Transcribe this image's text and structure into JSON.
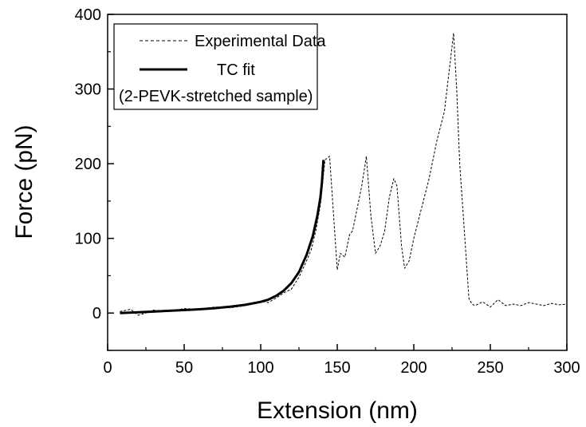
{
  "chart_data": {
    "type": "line",
    "title": "",
    "xlabel": "Extension (nm)",
    "ylabel": "Force (pN)",
    "xlim": [
      0,
      300
    ],
    "ylim": [
      -50,
      400
    ],
    "x_ticks": [
      0,
      50,
      100,
      150,
      200,
      250,
      300
    ],
    "y_ticks": [
      0,
      100,
      200,
      300,
      400
    ],
    "grid": false,
    "legend_position": "top-left",
    "series": [
      {
        "name": "Experimental Data",
        "style": "dashed",
        "color": "#000000",
        "x": [
          8,
          15,
          20,
          25,
          30,
          40,
          50,
          60,
          70,
          80,
          90,
          100,
          105,
          110,
          115,
          120,
          125,
          130,
          133,
          136,
          139,
          142,
          145,
          147,
          150,
          152,
          155,
          158,
          160,
          163,
          166,
          169,
          172,
          175,
          178,
          181,
          184,
          187,
          189,
          192,
          194,
          197,
          200,
          205,
          210,
          215,
          220,
          224,
          226,
          228,
          230,
          233,
          236,
          238,
          240,
          245,
          250,
          255,
          260,
          265,
          270,
          275,
          280,
          285,
          290,
          295,
          300
        ],
        "y": [
          2,
          5,
          -3,
          0,
          4,
          2,
          6,
          5,
          8,
          7,
          10,
          16,
          14,
          20,
          27,
          32,
          48,
          70,
          85,
          110,
          145,
          205,
          210,
          150,
          58,
          80,
          75,
          105,
          110,
          140,
          170,
          210,
          130,
          80,
          90,
          110,
          155,
          180,
          170,
          90,
          60,
          70,
          100,
          140,
          180,
          230,
          270,
          340,
          375,
          300,
          200,
          110,
          20,
          12,
          10,
          15,
          8,
          18,
          10,
          12,
          10,
          14,
          12,
          10,
          13,
          11,
          12
        ]
      },
      {
        "name": "TC fit",
        "style": "solid",
        "color": "#000000",
        "x": [
          8,
          20,
          30,
          40,
          50,
          60,
          70,
          80,
          90,
          100,
          105,
          110,
          115,
          120,
          125,
          130,
          134,
          137,
          139,
          140,
          141
        ],
        "y": [
          0,
          1,
          2,
          3,
          4,
          5,
          6.5,
          8.5,
          11,
          15,
          18,
          23,
          30,
          40,
          55,
          78,
          103,
          130,
          155,
          175,
          205
        ]
      }
    ]
  },
  "legend": {
    "entries": [
      "Experimental Data",
      "TC fit"
    ],
    "note": "(2-PEVK-stretched sample)"
  }
}
